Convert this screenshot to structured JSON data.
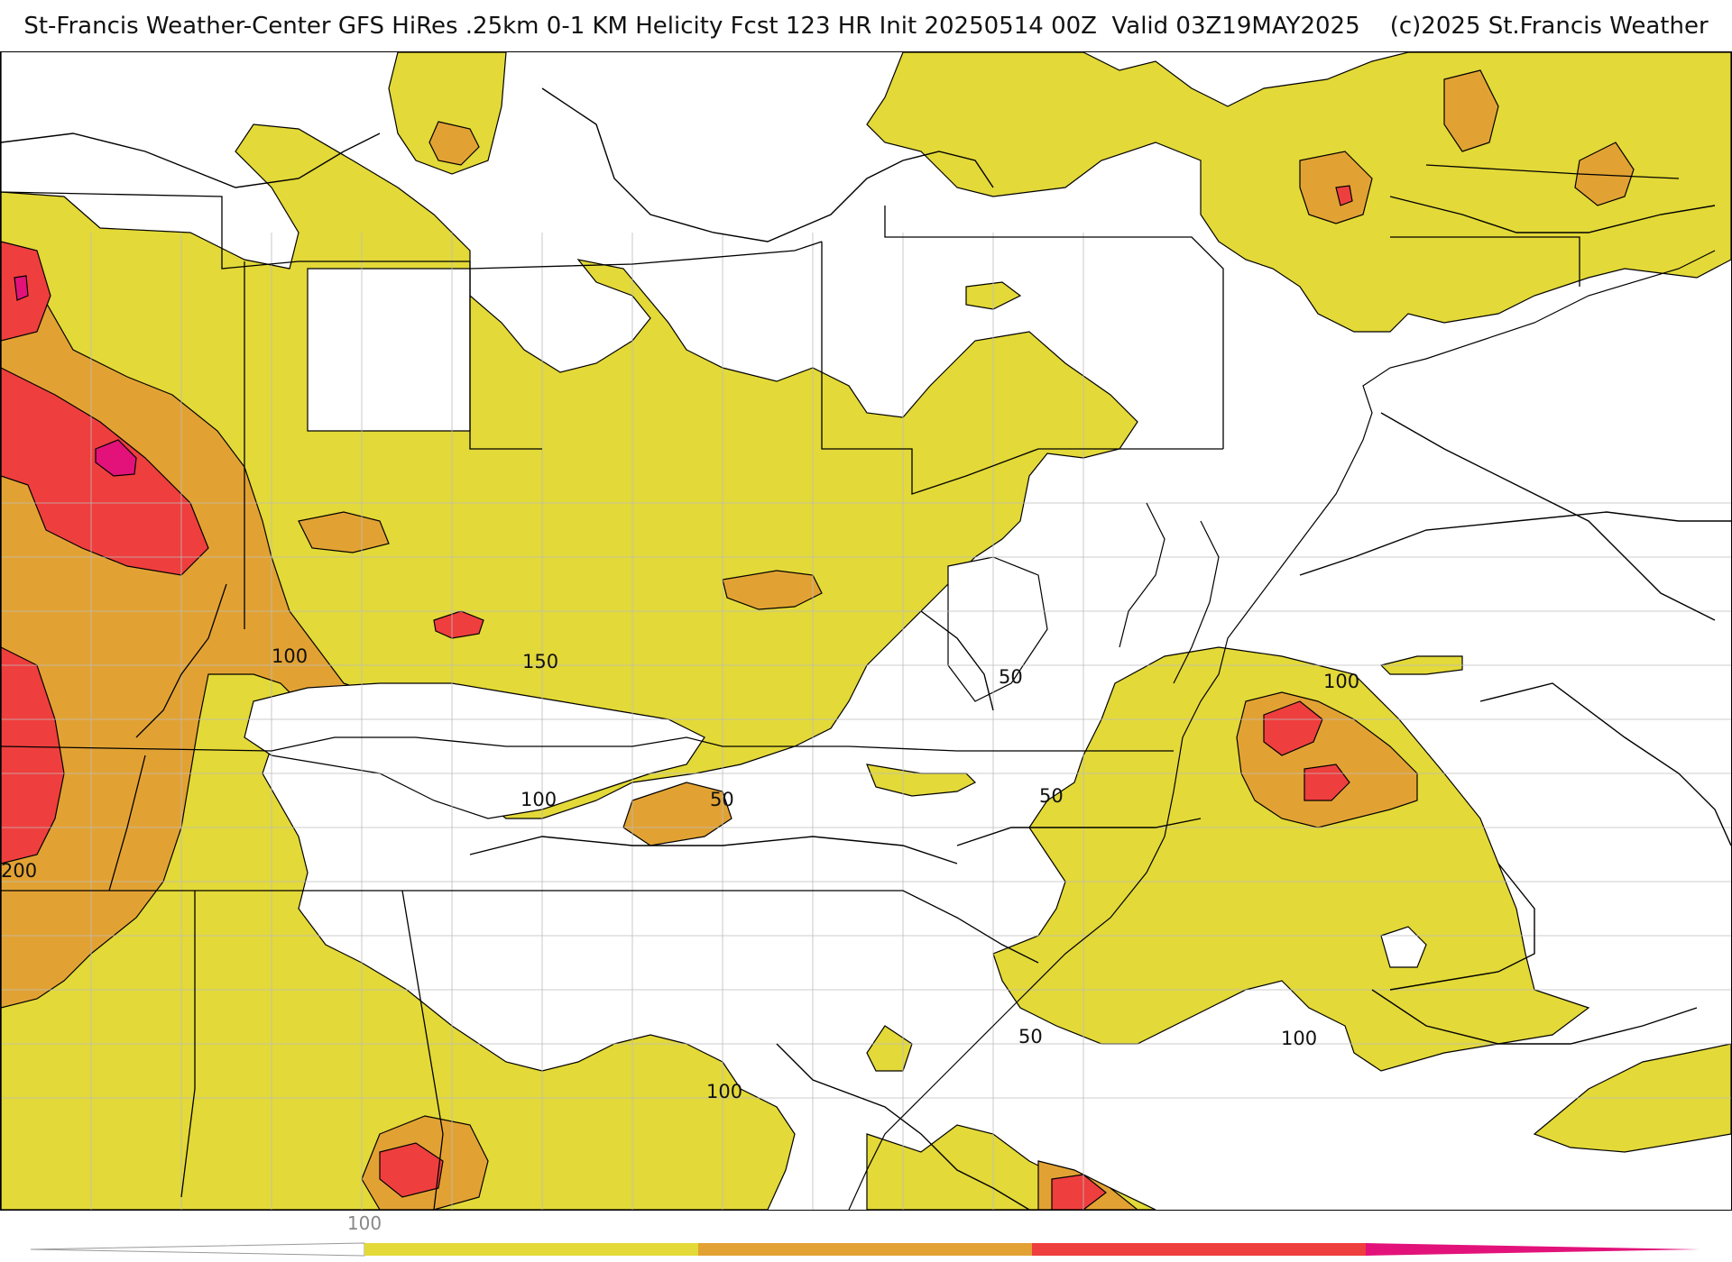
{
  "header": {
    "title": "St-Francis Weather-Center GFS HiRes .25km 0-1 KM Helicity Fcst 123 HR Init 20250514 00Z  Valid 03Z19MAY2025    (c)2025 St.Francis Weather"
  },
  "legend": {
    "colors": {
      "band_50_100": "#ffffff",
      "band_100_150": "#e3d938",
      "band_150_200": "#e2a233",
      "band_200_250": "#ef3e3e",
      "band_250_plus": "#e2127a"
    },
    "tick_label": "100"
  },
  "contour_labels": [
    "100",
    "150",
    "100",
    "50",
    "50",
    "50",
    "100",
    "200",
    "100",
    "50",
    "100",
    "100"
  ]
}
